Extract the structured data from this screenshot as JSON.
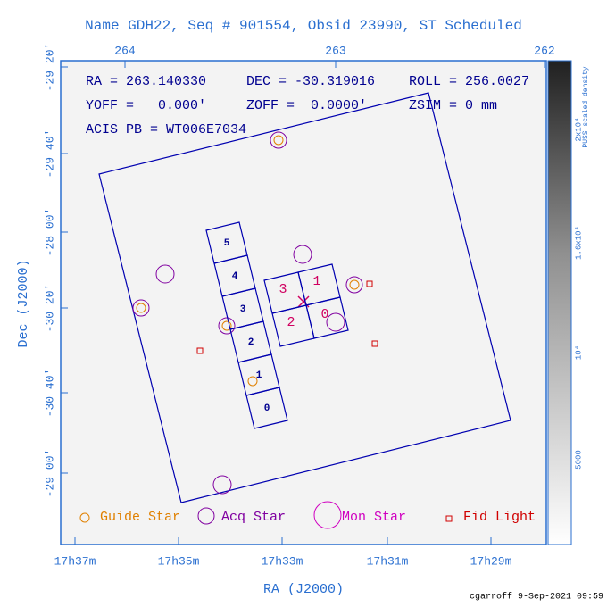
{
  "header": {
    "title": "Name GDH22, Seq # 901554, Obsid 23990, ST Scheduled"
  },
  "top_ticks": [
    "264",
    "263",
    "262"
  ],
  "left_ticks": [
    "-29 20'",
    "-29 40'",
    "-28 00'",
    "-30 20'",
    "-30 40'",
    "-29 00'"
  ],
  "bottom_ticks": [
    "17h37m",
    "17h35m",
    "17h33m",
    "17h31m",
    "17h29m"
  ],
  "x_label": "RA (J2000)",
  "y_label": "Dec (J2000)",
  "info": [
    "RA = 263.140330",
    "DEC = -30.319016",
    "ROLL = 256.0027",
    "YOFF =   0.000'",
    "ZOFF =  0.0000'",
    "ZSIM = 0 mm",
    "ACIS PB = WT006E7034"
  ],
  "acis_s_chips": [
    "5",
    "4",
    "3",
    "2",
    "1",
    "0"
  ],
  "acis_i_chips": [
    "3",
    "1",
    "2",
    "0"
  ],
  "legend": [
    "Guide Star",
    "Acq Star",
    "Mon Star",
    "Fid Light"
  ],
  "colorbar": {
    "title": "PUSS scaled density",
    "labels": [
      "2x10⁴",
      "1.6x10⁴",
      "10⁴",
      "5000"
    ]
  },
  "footer": "cgarroff  9-Sep-2021 09:59"
}
